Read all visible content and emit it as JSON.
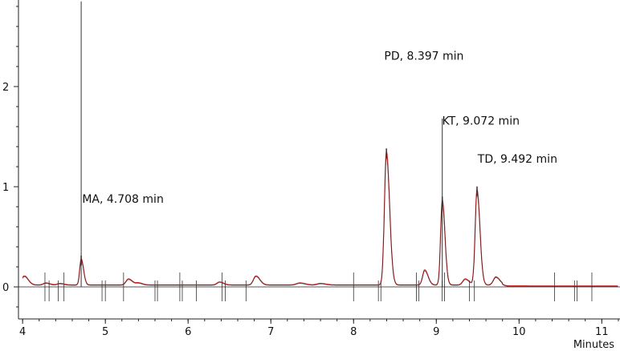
{
  "chart_data": {
    "type": "line",
    "title": "",
    "xlabel": "Minutes",
    "ylabel": "",
    "xlim": [
      3.95,
      11.22
    ],
    "ylim": [
      -0.28,
      2.85
    ],
    "xticks": [
      4,
      5,
      6,
      7,
      8,
      9,
      10,
      11
    ],
    "yticks": [
      0,
      1,
      2
    ],
    "grid": false,
    "legend": "none",
    "colors": {
      "trace": "#cc2222",
      "trace_overlay": "#222222",
      "marker": "#333333"
    },
    "series": [
      {
        "peaks": [
          {
            "rt": 4.02,
            "h": 0.09,
            "w": 0.03
          },
          {
            "rt": 4.28,
            "h": 0.02,
            "w": 0.03
          },
          {
            "rt": 4.45,
            "h": 0.015,
            "w": 0.03
          },
          {
            "rt": 4.708,
            "h": 0.26,
            "w": 0.018
          },
          {
            "rt": 5.28,
            "h": 0.06,
            "w": 0.03
          },
          {
            "rt": 5.4,
            "h": 0.02,
            "w": 0.03
          },
          {
            "rt": 6.38,
            "h": 0.03,
            "w": 0.03
          },
          {
            "rt": 6.82,
            "h": 0.09,
            "w": 0.03
          },
          {
            "rt": 7.35,
            "h": 0.02,
            "w": 0.04
          },
          {
            "rt": 7.6,
            "h": 0.015,
            "w": 0.04
          },
          {
            "rt": 8.397,
            "h": 1.33,
            "w": 0.024
          },
          {
            "rt": 8.86,
            "h": 0.15,
            "w": 0.025
          },
          {
            "rt": 9.072,
            "h": 0.85,
            "w": 0.02
          },
          {
            "rt": 9.35,
            "h": 0.06,
            "w": 0.03
          },
          {
            "rt": 9.492,
            "h": 0.95,
            "w": 0.022
          },
          {
            "rt": 9.72,
            "h": 0.08,
            "w": 0.03
          }
        ],
        "baseline": 0.02
      }
    ],
    "annotations": [
      {
        "label": "MA, 4.708 min",
        "rt": 4.708,
        "label_x": 4.72,
        "label_y": 0.88,
        "line_top": 2.85
      },
      {
        "label": "PD, 8.397 min",
        "rt": 8.397,
        "label_x": 8.37,
        "label_y": 2.31,
        "line_top": null
      },
      {
        "label": "KT, 9.072 min",
        "rt": 9.072,
        "label_x": 9.07,
        "label_y": 1.66,
        "line_top": 1.68
      },
      {
        "label": "TD, 9.492 min",
        "rt": 9.492,
        "label_x": 9.5,
        "label_y": 1.28,
        "line_top": null
      }
    ],
    "integration_marks": [
      4.27,
      4.32,
      4.43,
      4.5,
      4.96,
      5.0,
      5.22,
      5.6,
      5.63,
      5.9,
      5.93,
      6.1,
      6.41,
      6.45,
      6.7,
      8.0,
      8.3,
      8.33,
      8.76,
      8.79,
      9.07,
      9.1,
      9.4,
      9.46,
      10.43,
      10.67,
      10.7,
      10.88
    ]
  }
}
